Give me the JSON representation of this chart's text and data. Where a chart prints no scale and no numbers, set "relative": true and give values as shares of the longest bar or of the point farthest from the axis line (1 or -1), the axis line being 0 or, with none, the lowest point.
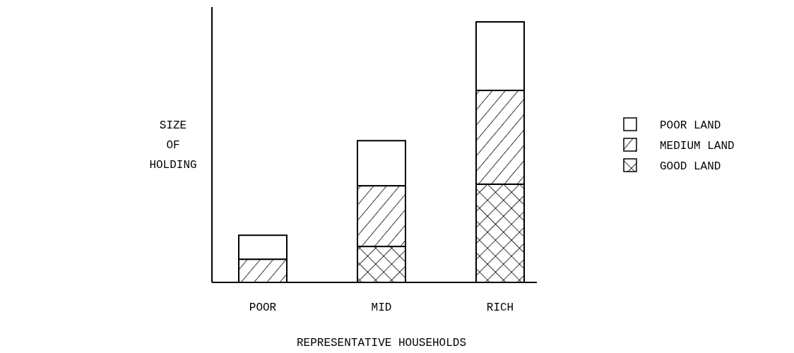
{
  "chart_data": {
    "type": "bar",
    "stacked": true,
    "relative": true,
    "xlabel": "REPRESENTATIVE HOUSEHOLDS",
    "ylabel": "SIZE\nOF\nHOLDING",
    "categories": [
      "POOR",
      "MID",
      "RICH"
    ],
    "legend": "right",
    "series": [
      {
        "name": "GOOD LAND",
        "color": "#000000",
        "values": [
          0,
          0.138,
          0.377
        ]
      },
      {
        "name": "MEDIUM LAND",
        "color": "#000000",
        "values": [
          0.089,
          0.233,
          0.36
        ]
      },
      {
        "name": "POOR LAND",
        "color": "#ffffff",
        "values": [
          0.092,
          0.173,
          0.263
        ]
      }
    ]
  }
}
